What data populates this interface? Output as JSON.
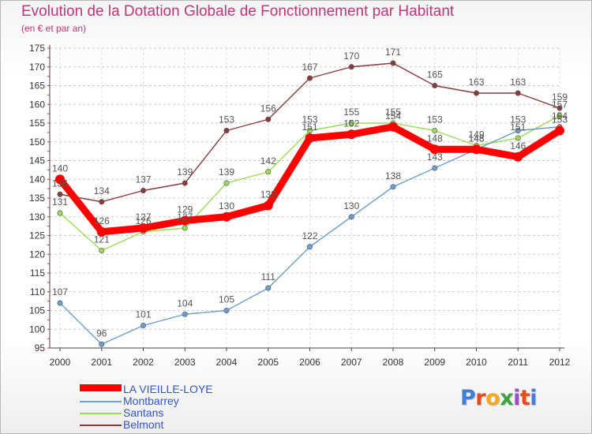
{
  "title": "Evolution de la Dotation Globale de Fonctionnement par Habitant",
  "subtitle": "(en € et par an)",
  "colors": {
    "title": "#c2357a",
    "legend_text": "#3355cc",
    "grid": "#c8c8c8",
    "axis": "#444444"
  },
  "logo": {
    "text": "Proxiti",
    "letter_colors": [
      "#3f7fd6",
      "#e94a1c",
      "#f2a91e",
      "#3aa53a",
      "#9b4fc4",
      "#e94a1c",
      "#3f7fd6"
    ]
  },
  "chart_data": {
    "type": "line",
    "x": [
      "2000",
      "2001",
      "2002",
      "2003",
      "2004",
      "2005",
      "2006",
      "2007",
      "2008",
      "2009",
      "2010",
      "2011",
      "2012"
    ],
    "ylim": [
      95,
      175
    ],
    "yticks": [
      95,
      100,
      105,
      110,
      115,
      120,
      125,
      130,
      135,
      140,
      145,
      150,
      155,
      160,
      165,
      170,
      175
    ],
    "grid": "horizontal dashed",
    "legend": "bottom-left",
    "series": [
      {
        "name": "LA VIEILLE-LOYE",
        "color": "#ff0000",
        "values": [
          140,
          126,
          127,
          129,
          130,
          133,
          151,
          152,
          154,
          148,
          148,
          146,
          153
        ]
      },
      {
        "name": "Montbarrey",
        "color": "#6a9fd0",
        "values": [
          107,
          96,
          101,
          104,
          105,
          111,
          122,
          130,
          138,
          143,
          148,
          153,
          154
        ]
      },
      {
        "name": "Santans",
        "color": "#99dd55",
        "values": [
          131,
          121,
          126,
          127,
          139,
          142,
          153,
          155,
          155,
          153,
          149,
          151,
          157
        ]
      },
      {
        "name": "Belmont",
        "color": "#8b3a3a",
        "values": [
          136,
          134,
          137,
          139,
          153,
          156,
          167,
          170,
          171,
          165,
          163,
          163,
          159
        ]
      }
    ]
  }
}
